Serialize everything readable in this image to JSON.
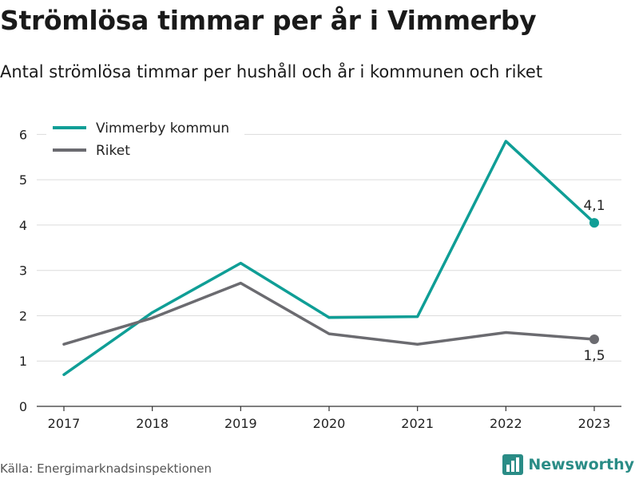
{
  "title": "Strömlösa timmar per år i Vimmerby",
  "subtitle": "Antal strömlösa timmar per hushåll och år i kommunen och riket",
  "source": "Källa: Energimarknadsinspektionen",
  "brand": {
    "name": "Newsworthy",
    "icon": "bar-chart-logo-icon",
    "color": "#2a8c86"
  },
  "chart_data": {
    "type": "line",
    "title": "Strömlösa timmar per år i Vimmerby",
    "subtitle": "Antal strömlösa timmar per hushåll och år i kommunen och riket",
    "x": [
      "2017",
      "2018",
      "2019",
      "2020",
      "2021",
      "2022",
      "2023"
    ],
    "yticks": [
      "0",
      "1",
      "2",
      "3",
      "4",
      "5",
      "6"
    ],
    "ylim": [
      0,
      6.5
    ],
    "grid": true,
    "legend": "top-left",
    "series": [
      {
        "name": "Vimmerby kommun",
        "color": "#0f9e96",
        "values": [
          0.7,
          2.07,
          3.16,
          1.96,
          1.98,
          5.85,
          4.05
        ],
        "end_label": "4,1"
      },
      {
        "name": "Riket",
        "color": "#6b6b70",
        "values": [
          1.37,
          1.95,
          2.72,
          1.6,
          1.37,
          1.63,
          1.48
        ],
        "end_label": "1,5"
      }
    ]
  }
}
